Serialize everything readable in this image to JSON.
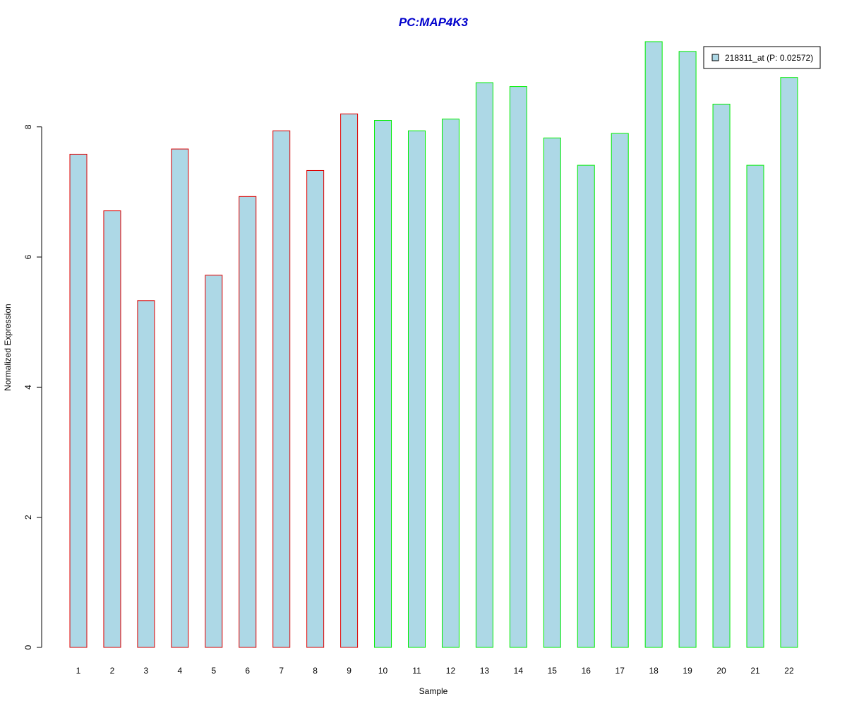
{
  "chart_data": {
    "type": "bar",
    "title": "PC:MAP4K3",
    "xlabel": "Sample",
    "ylabel": "Normalized Expression",
    "categories": [
      "1",
      "2",
      "3",
      "4",
      "5",
      "6",
      "7",
      "8",
      "9",
      "10",
      "11",
      "12",
      "13",
      "14",
      "15",
      "16",
      "17",
      "18",
      "19",
      "20",
      "21",
      "22"
    ],
    "series": [
      {
        "name": "218311_at (P: 0.02572)",
        "values": [
          7.58,
          6.71,
          5.33,
          7.66,
          5.72,
          6.93,
          7.94,
          7.33,
          8.2,
          8.1,
          7.94,
          8.12,
          8.68,
          8.62,
          7.83,
          7.41,
          7.9,
          9.31,
          9.16,
          8.35,
          7.41,
          8.76
        ]
      }
    ],
    "groups": [
      {
        "samples": [
          1,
          2,
          3,
          4,
          5,
          6,
          7,
          8,
          9
        ],
        "border_color": "#dd0000"
      },
      {
        "samples": [
          10,
          11,
          12,
          13,
          14,
          15,
          16,
          17,
          18,
          19,
          20,
          21,
          22
        ],
        "border_color": "#00ee00"
      }
    ],
    "bar_fill": "#add8e6",
    "title_color": "#0000cc",
    "ylim": [
      0,
      9.31
    ],
    "yticks": [
      0,
      2,
      4,
      6,
      8
    ],
    "grid": false,
    "legend_position": "top-right"
  }
}
